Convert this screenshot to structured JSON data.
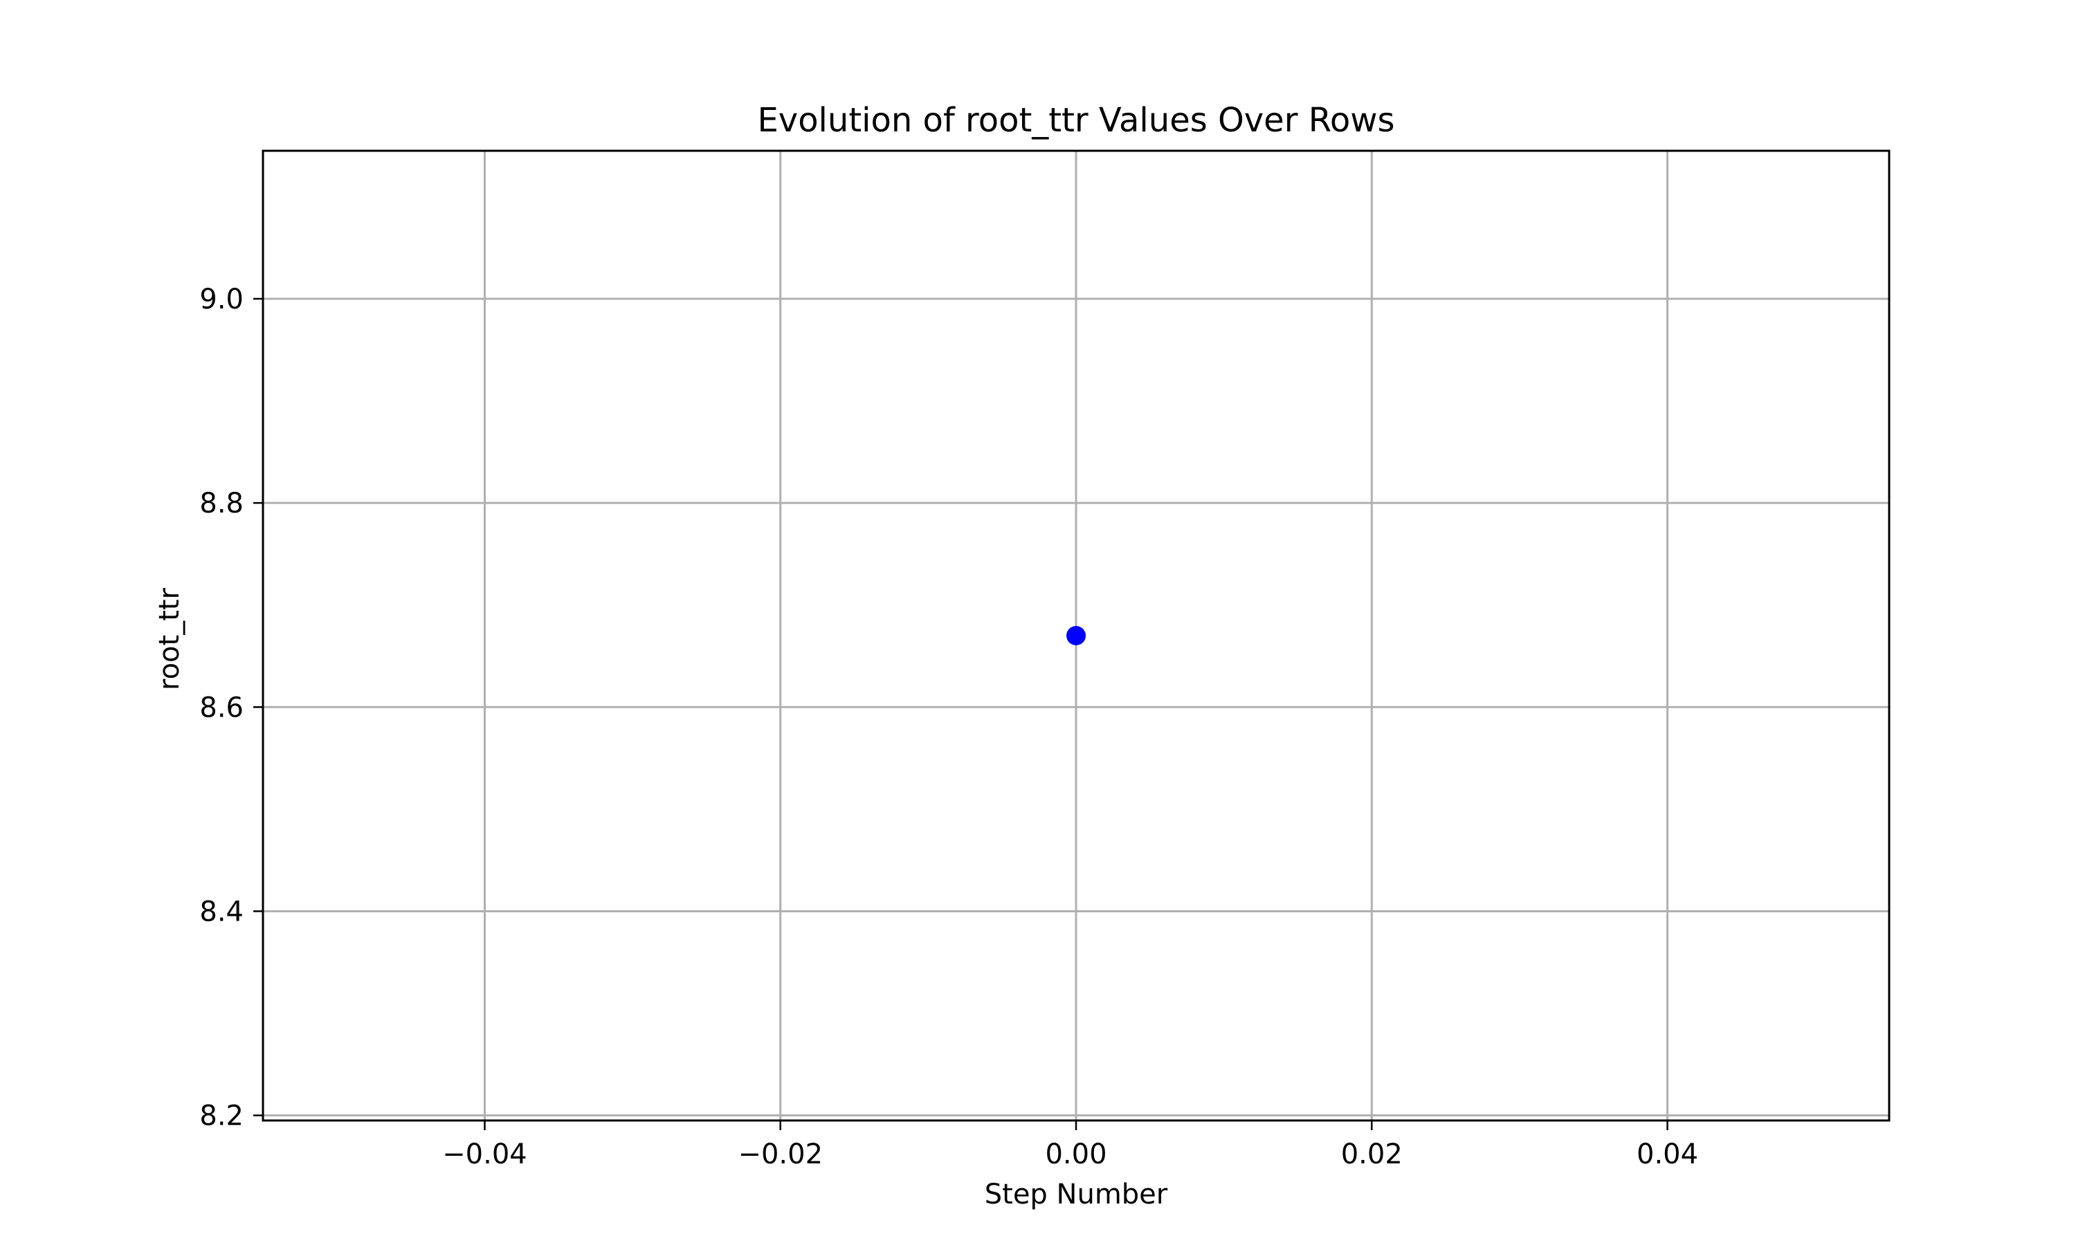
{
  "chart_data": {
    "type": "scatter",
    "title": "Evolution of root_ttr Values Over Rows",
    "xlabel": "Step Number",
    "ylabel": "root_ttr",
    "xlim": [
      -0.055,
      0.055
    ],
    "ylim": [
      8.195,
      9.145
    ],
    "x_ticks": [
      -0.04,
      -0.02,
      0.0,
      0.02,
      0.04
    ],
    "x_tick_labels": [
      "−0.04",
      "−0.02",
      "0.00",
      "0.02",
      "0.04"
    ],
    "y_ticks": [
      8.2,
      8.4,
      8.6,
      8.8,
      9.0
    ],
    "y_tick_labels": [
      "8.2",
      "8.4",
      "8.6",
      "8.8",
      "9.0"
    ],
    "grid": true,
    "series": [
      {
        "color": "#0000ff",
        "x": [
          0.0
        ],
        "y": [
          8.67
        ]
      }
    ]
  }
}
